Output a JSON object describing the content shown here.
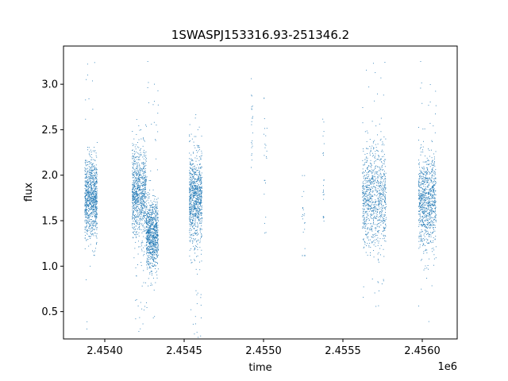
{
  "chart_data": {
    "type": "scatter",
    "title": "1SWASPJ153316.93-251346.2",
    "xlabel": "time",
    "ylabel": "flux",
    "x_offset_label": "1e6",
    "xlim": [
      2453740,
      2456220
    ],
    "ylim": [
      0.2,
      3.42
    ],
    "x_ticks": [
      2.454,
      2.4545,
      2.455,
      2.4555,
      2.456
    ],
    "x_tick_labels": [
      "2.4540",
      "2.4545",
      "2.4550",
      "2.4555",
      "2.4560"
    ],
    "y_ticks": [
      0.5,
      1.0,
      1.5,
      2.0,
      2.5,
      3.0
    ],
    "y_tick_labels": [
      "0.5",
      "1.0",
      "1.5",
      "2.0",
      "2.5",
      "3.0"
    ],
    "grid": false,
    "legend": "none",
    "color": "#1f77b4",
    "clusters": [
      {
        "x_start": 2453872,
        "x_end": 2453950,
        "flux_center": 1.75,
        "flux_spread": 0.22,
        "flux_min": 0.2,
        "flux_max": 3.32,
        "density": "high"
      },
      {
        "x_start": 2454170,
        "x_end": 2454260,
        "flux_center": 1.8,
        "flux_spread": 0.24,
        "flux_min": 0.28,
        "flux_max": 2.62,
        "density": "high"
      },
      {
        "x_start": 2454260,
        "x_end": 2454335,
        "flux_center": 1.35,
        "flux_spread": 0.18,
        "flux_min": 0.4,
        "flux_max": 3.32,
        "density": "high"
      },
      {
        "x_start": 2454530,
        "x_end": 2454610,
        "flux_center": 1.75,
        "flux_spread": 0.25,
        "flux_min": 0.18,
        "flux_max": 2.7,
        "density": "high"
      },
      {
        "x_start": 2454920,
        "x_end": 2454930,
        "flux_center": 2.5,
        "flux_spread": 0.3,
        "flux_min": 1.82,
        "flux_max": 3.22,
        "density": "low"
      },
      {
        "x_start": 2455000,
        "x_end": 2455020,
        "flux_center": 2.1,
        "flux_spread": 0.35,
        "flux_min": 0.95,
        "flux_max": 2.85,
        "density": "low"
      },
      {
        "x_start": 2455240,
        "x_end": 2455260,
        "flux_center": 1.55,
        "flux_spread": 0.3,
        "flux_min": 1.12,
        "flux_max": 2.0,
        "density": "low"
      },
      {
        "x_start": 2455370,
        "x_end": 2455380,
        "flux_center": 1.9,
        "flux_spread": 0.4,
        "flux_min": 1.5,
        "flux_max": 2.62,
        "density": "low"
      },
      {
        "x_start": 2455620,
        "x_end": 2455770,
        "flux_center": 1.78,
        "flux_spread": 0.28,
        "flux_min": 0.52,
        "flux_max": 3.32,
        "density": "high"
      },
      {
        "x_start": 2455975,
        "x_end": 2456085,
        "flux_center": 1.72,
        "flux_spread": 0.24,
        "flux_min": 0.36,
        "flux_max": 3.32,
        "density": "high"
      }
    ]
  }
}
